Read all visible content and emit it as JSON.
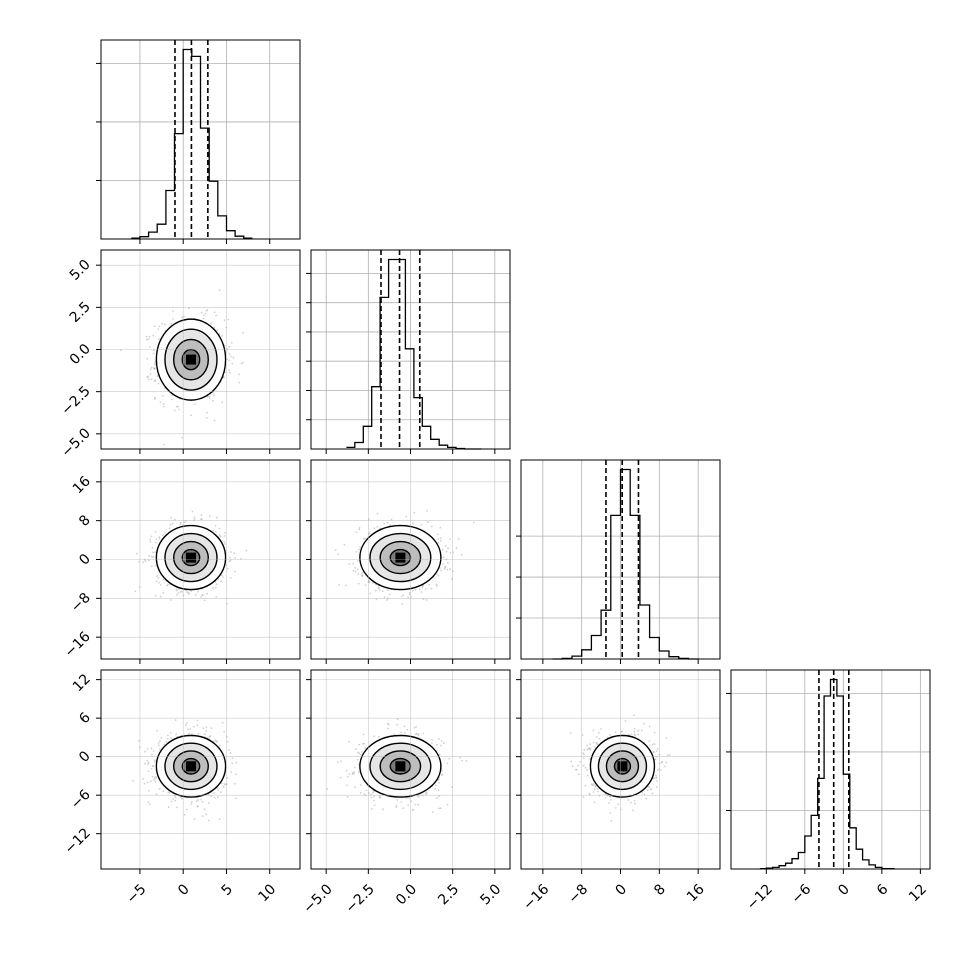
{
  "chart_data": {
    "type": "corner",
    "parameters": 4,
    "grid": true,
    "colors": {
      "line": "#000000",
      "grid": "#b0b0b0",
      "points": "#9a9a9a"
    },
    "axis_ranges": [
      [
        -9.5,
        13.5
      ],
      [
        -5.9,
        5.9
      ],
      [
        -20.5,
        20.5
      ],
      [
        -17.5,
        13.5
      ]
    ],
    "x_ticks": [
      {
        "values": [
          -5,
          0,
          5,
          10
        ],
        "labels": [
          "−5",
          "0",
          "5",
          "10"
        ]
      },
      {
        "values": [
          -5.0,
          -2.5,
          0.0,
          2.5,
          5.0
        ],
        "labels": [
          "−5.0",
          "−2.5",
          "0.0",
          "2.5",
          "5.0"
        ]
      },
      {
        "values": [
          -16,
          -8,
          0,
          8,
          16
        ],
        "labels": [
          "−16",
          "−8",
          "0",
          "8",
          "16"
        ]
      },
      {
        "values": [
          -12,
          -6,
          0,
          6,
          12
        ],
        "labels": [
          "−12",
          "−6",
          "0",
          "6",
          "12"
        ]
      }
    ],
    "y_ticks": {
      "1": {
        "values": [
          -5.0,
          -2.5,
          0.0,
          2.5,
          5.0
        ],
        "labels": [
          "−5.0",
          "−2.5",
          "0.0",
          "2.5",
          "5.0"
        ]
      },
      "2": {
        "values": [
          -16,
          -8,
          0,
          8,
          16
        ],
        "labels": [
          "−16",
          "−8",
          "0",
          "8",
          "16"
        ]
      },
      "3": {
        "values": [
          -12,
          -6,
          0,
          6,
          12
        ],
        "labels": [
          "−12",
          "−6",
          "0",
          "6",
          "12"
        ]
      }
    },
    "histograms": [
      {
        "bin_edges": [
          -6,
          -5,
          -4,
          -3,
          -2,
          -1,
          0,
          1,
          2,
          3,
          4,
          5,
          6,
          7,
          8
        ],
        "counts": [
          2,
          5,
          15,
          32,
          105,
          228,
          410,
          395,
          240,
          125,
          50,
          18,
          6,
          2
        ],
        "quantiles": [
          -0.95,
          0.95,
          2.85
        ],
        "y_ticks": [
          0.5,
          1,
          1.5
        ]
      },
      {
        "bin_edges": [
          -3.8,
          -3.3,
          -2.8,
          -2.3,
          -1.8,
          -1.3,
          -0.8,
          -0.3,
          0.2,
          0.7,
          1.2,
          1.7,
          2.2,
          2.7,
          3.2,
          3.7,
          4.2
        ],
        "counts": [
          3,
          12,
          42,
          115,
          280,
          350,
          350,
          185,
          95,
          42,
          18,
          7,
          3,
          1,
          0,
          0
        ],
        "quantiles": [
          -1.75,
          -0.65,
          0.55
        ],
        "y_ticks": [
          0.25,
          0.5,
          0.75,
          1,
          1.25,
          1.5
        ]
      },
      {
        "bin_edges": [
          -14,
          -12,
          -10,
          -8,
          -6,
          -4,
          -2,
          0,
          2,
          4,
          6,
          8,
          10,
          12,
          14,
          16
        ],
        "counts": [
          0,
          2,
          10,
          32,
          82,
          170,
          500,
          660,
          500,
          188,
          75,
          28,
          8,
          2,
          0
        ],
        "quantiles": [
          -3.0,
          0.35,
          3.7
        ],
        "y_ticks": [
          0.35,
          0.7,
          1.05
        ]
      },
      {
        "bin_edges": [
          -13,
          -12,
          -11,
          -10,
          -9,
          -8,
          -7,
          -6,
          -5,
          -4,
          -3,
          -2,
          -1,
          0,
          1,
          2,
          3,
          4,
          5,
          6,
          7,
          8
        ],
        "counts": [
          1,
          2,
          4,
          8,
          14,
          25,
          40,
          80,
          130,
          220,
          420,
          460,
          420,
          230,
          100,
          48,
          22,
          10,
          4,
          1,
          1
        ],
        "quantiles": [
          -3.8,
          -1.5,
          0.85
        ],
        "y_ticks": [
          0.5,
          1,
          1.5
        ]
      }
    ],
    "joint_distributions": [
      {
        "x_param": 0,
        "y_param": 1,
        "center": [
          0.9,
          -0.6
        ],
        "sigma": [
          2.0,
          1.2
        ]
      },
      {
        "x_param": 0,
        "y_param": 2,
        "center": [
          0.9,
          0.4
        ],
        "sigma": [
          2.0,
          3.3
        ]
      },
      {
        "x_param": 1,
        "y_param": 2,
        "center": [
          -0.6,
          0.4
        ],
        "sigma": [
          1.2,
          3.3
        ]
      },
      {
        "x_param": 0,
        "y_param": 3,
        "center": [
          0.9,
          -1.5
        ],
        "sigma": [
          2.0,
          2.4
        ]
      },
      {
        "x_param": 1,
        "y_param": 3,
        "center": [
          -0.6,
          -1.5
        ],
        "sigma": [
          1.2,
          2.4
        ]
      },
      {
        "x_param": 2,
        "y_param": 3,
        "center": [
          0.4,
          -1.5
        ],
        "sigma": [
          3.3,
          2.4
        ]
      }
    ],
    "contour_levels_sigma": [
      0.5,
      1.0,
      1.5,
      2.0
    ]
  }
}
